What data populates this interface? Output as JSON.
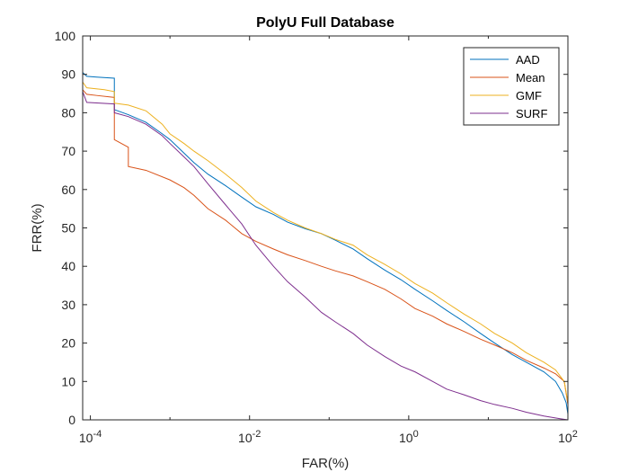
{
  "chart_data": {
    "type": "line",
    "title": "PolyU Full Database",
    "xlabel": "FAR(%)",
    "ylabel": "FRR(%)",
    "xscale": "log",
    "xlim": [
      8e-05,
      100
    ],
    "ylim": [
      0,
      100
    ],
    "x_ticks": [
      {
        "value": 0.0001,
        "base": "10",
        "exp": "-4"
      },
      {
        "value": 0.01,
        "base": "10",
        "exp": "-2"
      },
      {
        "value": 1,
        "base": "10",
        "exp": "0"
      },
      {
        "value": 100,
        "base": "10",
        "exp": "2"
      }
    ],
    "y_ticks": [
      0,
      10,
      20,
      30,
      40,
      50,
      60,
      70,
      80,
      90,
      100
    ],
    "legend_position": "top-right",
    "grid": false,
    "series": [
      {
        "name": "AAD",
        "color": "#0072BD",
        "points": [
          [
            8e-05,
            90.5
          ],
          [
            9e-05,
            89.5
          ],
          [
            0.00012,
            89.3
          ],
          [
            0.0002,
            89.0
          ],
          [
            0.0002,
            80.8
          ],
          [
            0.0003,
            79.5
          ],
          [
            0.0005,
            77.5
          ],
          [
            0.0008,
            74.5
          ],
          [
            0.001,
            73.0
          ],
          [
            0.0015,
            69.5
          ],
          [
            0.002,
            67.0
          ],
          [
            0.003,
            64.0
          ],
          [
            0.005,
            61.0
          ],
          [
            0.008,
            58.0
          ],
          [
            0.012,
            55.5
          ],
          [
            0.02,
            53.5
          ],
          [
            0.03,
            51.5
          ],
          [
            0.05,
            49.8
          ],
          [
            0.08,
            48.5
          ],
          [
            0.12,
            46.8
          ],
          [
            0.2,
            44.5
          ],
          [
            0.3,
            42.0
          ],
          [
            0.5,
            39.0
          ],
          [
            0.8,
            36.5
          ],
          [
            1.2,
            34.0
          ],
          [
            2,
            31.0
          ],
          [
            3,
            28.5
          ],
          [
            5,
            25.5
          ],
          [
            8,
            22.5
          ],
          [
            12,
            20.0
          ],
          [
            20,
            17.0
          ],
          [
            30,
            15.0
          ],
          [
            50,
            12.5
          ],
          [
            70,
            10.0
          ],
          [
            85,
            7.0
          ],
          [
            95,
            4.5
          ],
          [
            100,
            1.5
          ]
        ]
      },
      {
        "name": "Mean",
        "color": "#D95319",
        "points": [
          [
            8e-05,
            86.0
          ],
          [
            9e-05,
            84.8
          ],
          [
            0.00012,
            84.5
          ],
          [
            0.0002,
            84.0
          ],
          [
            0.0002,
            73.0
          ],
          [
            0.0003,
            71.0
          ],
          [
            0.0003,
            66.0
          ],
          [
            0.0005,
            65.0
          ],
          [
            0.001,
            62.5
          ],
          [
            0.0015,
            60.5
          ],
          [
            0.002,
            58.5
          ],
          [
            0.003,
            55.0
          ],
          [
            0.005,
            52.0
          ],
          [
            0.008,
            48.5
          ],
          [
            0.012,
            46.5
          ],
          [
            0.02,
            44.5
          ],
          [
            0.03,
            43.0
          ],
          [
            0.05,
            41.5
          ],
          [
            0.08,
            40.0
          ],
          [
            0.12,
            38.8
          ],
          [
            0.2,
            37.5
          ],
          [
            0.3,
            36.0
          ],
          [
            0.5,
            34.0
          ],
          [
            0.8,
            31.5
          ],
          [
            1.2,
            29.0
          ],
          [
            2,
            27.0
          ],
          [
            3,
            25.0
          ],
          [
            5,
            23.0
          ],
          [
            8,
            21.0
          ],
          [
            12,
            19.5
          ],
          [
            20,
            17.5
          ],
          [
            30,
            15.5
          ],
          [
            50,
            13.5
          ],
          [
            70,
            12.0
          ],
          [
            90,
            10.0
          ],
          [
            100,
            4.0
          ]
        ]
      },
      {
        "name": "GMF",
        "color": "#EDB120",
        "points": [
          [
            8e-05,
            88.0
          ],
          [
            9e-05,
            86.5
          ],
          [
            0.00015,
            86.0
          ],
          [
            0.0002,
            85.5
          ],
          [
            0.0002,
            82.5
          ],
          [
            0.0003,
            82.0
          ],
          [
            0.0005,
            80.5
          ],
          [
            0.0008,
            77.0
          ],
          [
            0.001,
            74.5
          ],
          [
            0.0015,
            72.0
          ],
          [
            0.002,
            70.0
          ],
          [
            0.003,
            67.5
          ],
          [
            0.005,
            64.0
          ],
          [
            0.008,
            60.5
          ],
          [
            0.012,
            57.0
          ],
          [
            0.02,
            54.0
          ],
          [
            0.03,
            52.0
          ],
          [
            0.05,
            50.0
          ],
          [
            0.08,
            48.5
          ],
          [
            0.12,
            47.0
          ],
          [
            0.2,
            45.5
          ],
          [
            0.3,
            43.0
          ],
          [
            0.5,
            40.5
          ],
          [
            0.8,
            38.0
          ],
          [
            1.2,
            35.5
          ],
          [
            2,
            33.0
          ],
          [
            3,
            30.5
          ],
          [
            5,
            27.5
          ],
          [
            8,
            25.0
          ],
          [
            12,
            22.5
          ],
          [
            20,
            20.0
          ],
          [
            30,
            17.5
          ],
          [
            50,
            15.0
          ],
          [
            70,
            13.0
          ],
          [
            90,
            10.0
          ],
          [
            100,
            4.5
          ]
        ]
      },
      {
        "name": "SURF",
        "color": "#7E2F8E",
        "points": [
          [
            8e-05,
            85.5
          ],
          [
            9e-05,
            82.7
          ],
          [
            0.0002,
            82.3
          ],
          [
            0.0002,
            80.0
          ],
          [
            0.0003,
            79.0
          ],
          [
            0.0005,
            77.0
          ],
          [
            0.0008,
            74.0
          ],
          [
            0.001,
            72.0
          ],
          [
            0.0015,
            68.5
          ],
          [
            0.002,
            66.0
          ],
          [
            0.003,
            61.5
          ],
          [
            0.005,
            56.0
          ],
          [
            0.008,
            51.0
          ],
          [
            0.012,
            45.5
          ],
          [
            0.02,
            40.0
          ],
          [
            0.03,
            36.0
          ],
          [
            0.05,
            32.0
          ],
          [
            0.08,
            28.0
          ],
          [
            0.12,
            25.5
          ],
          [
            0.2,
            22.5
          ],
          [
            0.3,
            19.5
          ],
          [
            0.5,
            16.5
          ],
          [
            0.8,
            14.0
          ],
          [
            1.2,
            12.5
          ],
          [
            2,
            10.0
          ],
          [
            3,
            8.0
          ],
          [
            5,
            6.5
          ],
          [
            8,
            5.0
          ],
          [
            12,
            4.0
          ],
          [
            20,
            3.0
          ],
          [
            30,
            2.0
          ],
          [
            50,
            1.0
          ],
          [
            80,
            0.3
          ],
          [
            100,
            0.0
          ]
        ]
      }
    ]
  }
}
